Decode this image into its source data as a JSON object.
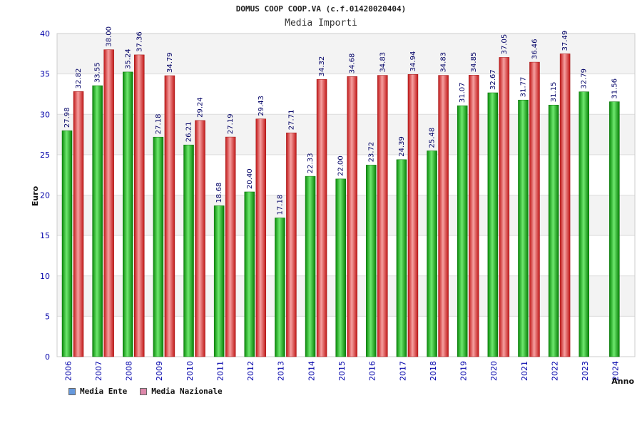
{
  "chart_data": {
    "type": "bar",
    "title": "DOMUS COOP COOP.VA (c.f.01420020404)",
    "subtitle": "Media Importi",
    "xlabel": "Anno",
    "ylabel": "Euro",
    "ylim": [
      0,
      40
    ],
    "yticks": [
      0,
      5,
      10,
      15,
      20,
      25,
      30,
      35,
      40
    ],
    "ytick_labels": [
      "0",
      "5",
      "10",
      "15",
      "20",
      "25",
      "30",
      "35",
      "40"
    ],
    "categories": [
      "2006",
      "2007",
      "2008",
      "2009",
      "2010",
      "2011",
      "2012",
      "2013",
      "2014",
      "2015",
      "2016",
      "2017",
      "2018",
      "2019",
      "2020",
      "2021",
      "2022",
      "2023",
      "2024"
    ],
    "series": [
      {
        "name": "Media Ente",
        "color": "#22bb22",
        "values": [
          27.98,
          33.55,
          35.24,
          27.18,
          26.21,
          18.68,
          20.4,
          17.18,
          22.33,
          22.0,
          23.72,
          24.39,
          25.48,
          31.07,
          32.67,
          31.77,
          31.15,
          32.79,
          31.56
        ],
        "labels": [
          "27.98",
          "33.55",
          "35.24",
          "27.18",
          "26.21",
          "18.68",
          "20.40",
          "17.18",
          "22.33",
          "22.00",
          "23.72",
          "24.39",
          "25.48",
          "31.07",
          "32.67",
          "31.77",
          "31.15",
          "32.79",
          "31.56"
        ]
      },
      {
        "name": "Media Nazionale",
        "color": "#dd2222",
        "values": [
          32.82,
          38.0,
          37.36,
          34.79,
          29.24,
          27.19,
          29.43,
          27.71,
          34.32,
          34.68,
          34.83,
          34.94,
          34.83,
          34.85,
          37.05,
          36.46,
          37.49,
          null,
          null
        ],
        "labels": [
          "32.82",
          "38.00",
          "37.36",
          "34.79",
          "29.24",
          "27.19",
          "29.43",
          "27.71",
          "34.32",
          "34.68",
          "34.83",
          "34.94",
          "34.83",
          "34.85",
          "37.05",
          "36.46",
          "37.49",
          null,
          null
        ]
      }
    ],
    "legend": [
      {
        "label": "Media Ente",
        "color": "#6699dd"
      },
      {
        "label": "Media Nazionale",
        "color": "#dd88aa"
      }
    ],
    "grid": true
  }
}
